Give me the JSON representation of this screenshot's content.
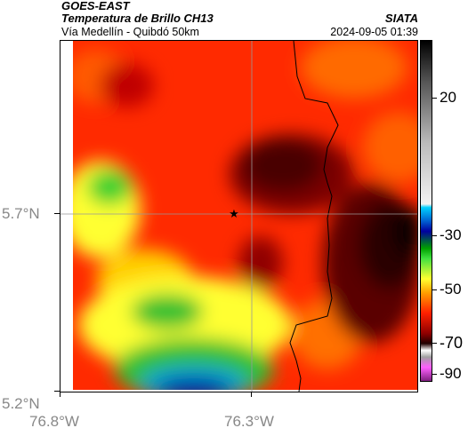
{
  "header": {
    "satellite": "GOES-EAST",
    "product": "Temperatura de Brillo CH13",
    "region": "Vía Medellín - Quibdó 50km",
    "org": "SIATA",
    "timestamp": "2024-09-05 01:39"
  },
  "axes": {
    "y_ticks": [
      "5.7°N",
      "5.2°N"
    ],
    "x_ticks": [
      "76.8°W",
      "76.3°W"
    ]
  },
  "colorbar": {
    "ticks": [
      "20",
      "-30",
      "-50",
      "-70",
      "-90"
    ],
    "unit_values": [
      20,
      -30,
      -50,
      -70,
      -90
    ]
  },
  "map": {
    "center_marker": "star-icon",
    "colors": {
      "warm": "#ff2200",
      "very_cold": "#1a0000",
      "green": "#20d020",
      "yellow": "#ffff40",
      "blue": "#0030b0"
    }
  }
}
